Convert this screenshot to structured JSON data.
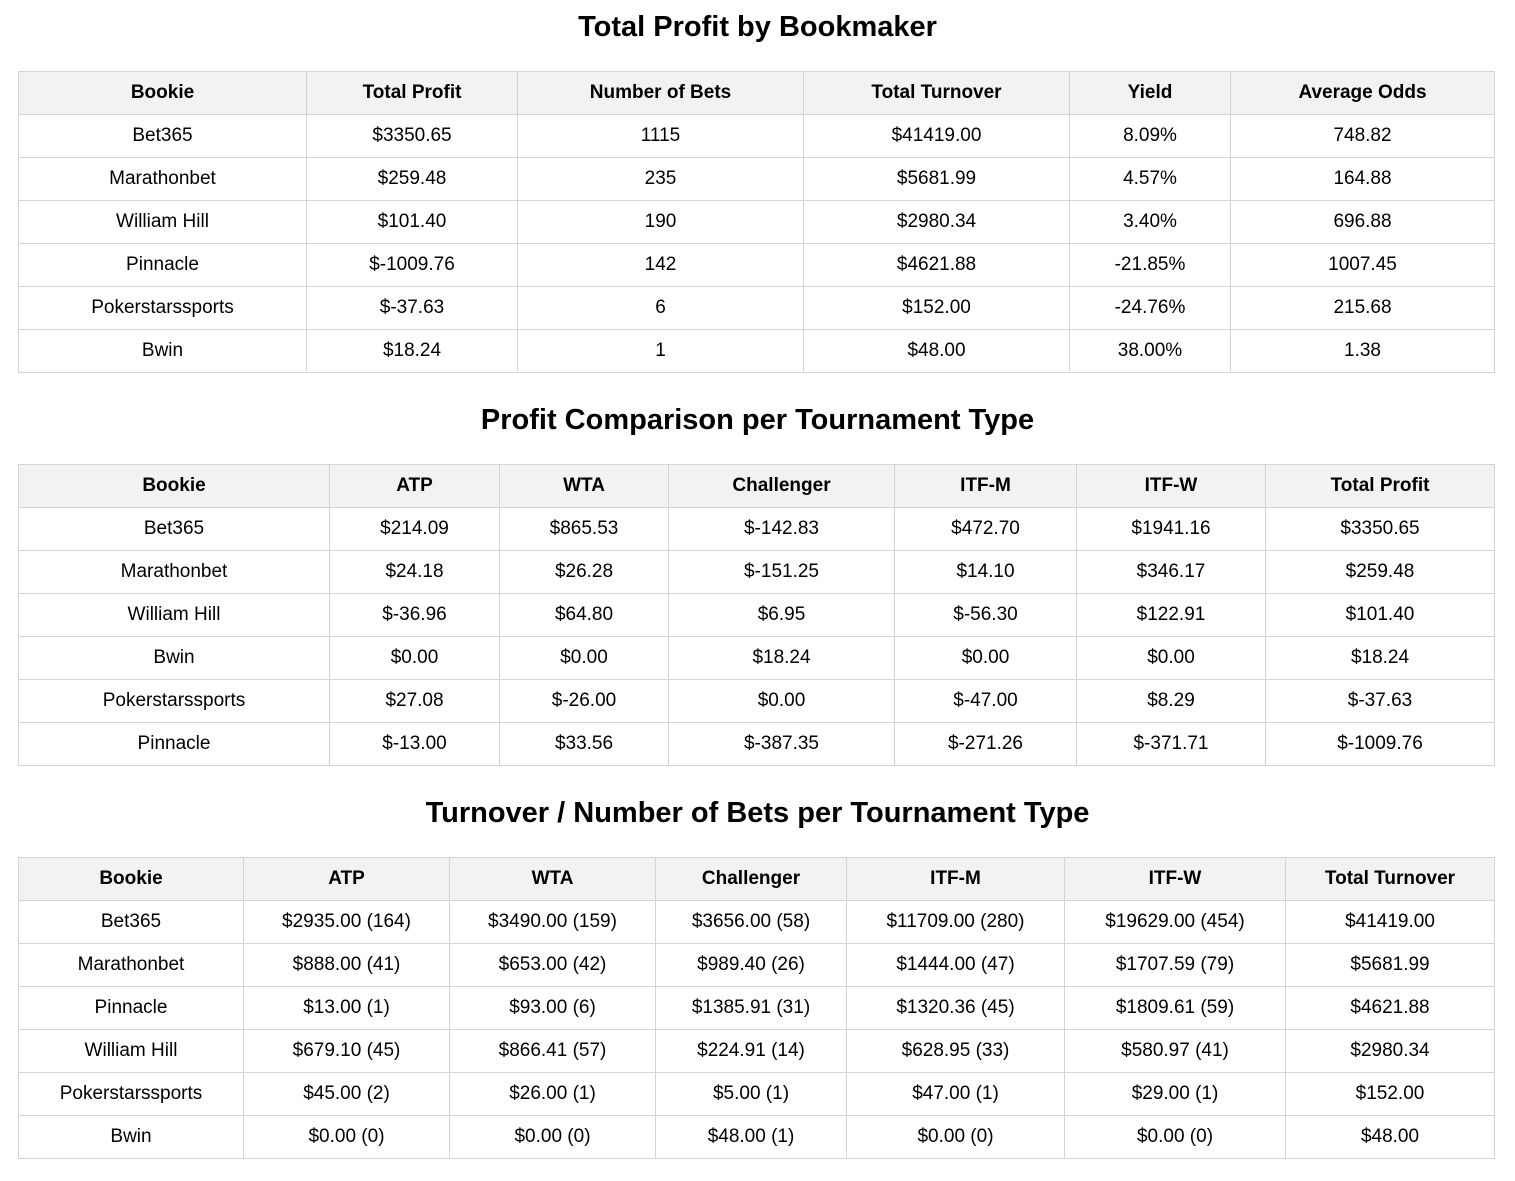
{
  "profit_by_bookmaker": {
    "title": "Total Profit by Bookmaker",
    "columns": [
      "Bookie",
      "Total Profit",
      "Number of Bets",
      "Total Turnover",
      "Yield",
      "Average Odds"
    ],
    "rows": [
      [
        "Bet365",
        "$3350.65",
        "1115",
        "$41419.00",
        "8.09%",
        "748.82"
      ],
      [
        "Marathonbet",
        "$259.48",
        "235",
        "$5681.99",
        "4.57%",
        "164.88"
      ],
      [
        "William Hill",
        "$101.40",
        "190",
        "$2980.34",
        "3.40%",
        "696.88"
      ],
      [
        "Pinnacle",
        "$-1009.76",
        "142",
        "$4621.88",
        "-21.85%",
        "1007.45"
      ],
      [
        "Pokerstarssports",
        "$-37.63",
        "6",
        "$152.00",
        "-24.76%",
        "215.68"
      ],
      [
        "Bwin",
        "$18.24",
        "1",
        "$48.00",
        "38.00%",
        "1.38"
      ]
    ]
  },
  "profit_per_tournament": {
    "title": "Profit Comparison per Tournament Type",
    "columns": [
      "Bookie",
      "ATP",
      "WTA",
      "Challenger",
      "ITF-M",
      "ITF-W",
      "Total Profit"
    ],
    "rows": [
      [
        "Bet365",
        "$214.09",
        "$865.53",
        "$-142.83",
        "$472.70",
        "$1941.16",
        "$3350.65"
      ],
      [
        "Marathonbet",
        "$24.18",
        "$26.28",
        "$-151.25",
        "$14.10",
        "$346.17",
        "$259.48"
      ],
      [
        "William Hill",
        "$-36.96",
        "$64.80",
        "$6.95",
        "$-56.30",
        "$122.91",
        "$101.40"
      ],
      [
        "Bwin",
        "$0.00",
        "$0.00",
        "$18.24",
        "$0.00",
        "$0.00",
        "$18.24"
      ],
      [
        "Pokerstarssports",
        "$27.08",
        "$-26.00",
        "$0.00",
        "$-47.00",
        "$8.29",
        "$-37.63"
      ],
      [
        "Pinnacle",
        "$-13.00",
        "$33.56",
        "$-387.35",
        "$-271.26",
        "$-371.71",
        "$-1009.76"
      ]
    ]
  },
  "turnover_per_tournament": {
    "title": "Turnover / Number of Bets per Tournament Type",
    "columns": [
      "Bookie",
      "ATP",
      "WTA",
      "Challenger",
      "ITF-M",
      "ITF-W",
      "Total Turnover"
    ],
    "rows": [
      [
        "Bet365",
        "$2935.00 (164)",
        "$3490.00 (159)",
        "$3656.00 (58)",
        "$11709.00 (280)",
        "$19629.00 (454)",
        "$41419.00"
      ],
      [
        "Marathonbet",
        "$888.00 (41)",
        "$653.00 (42)",
        "$989.40 (26)",
        "$1444.00 (47)",
        "$1707.59 (79)",
        "$5681.99"
      ],
      [
        "Pinnacle",
        "$13.00 (1)",
        "$93.00 (6)",
        "$1385.91 (31)",
        "$1320.36 (45)",
        "$1809.61 (59)",
        "$4621.88"
      ],
      [
        "William Hill",
        "$679.10 (45)",
        "$866.41 (57)",
        "$224.91 (14)",
        "$628.95 (33)",
        "$580.97 (41)",
        "$2980.34"
      ],
      [
        "Pokerstarssports",
        "$45.00 (2)",
        "$26.00 (1)",
        "$5.00 (1)",
        "$47.00 (1)",
        "$29.00 (1)",
        "$152.00"
      ],
      [
        "Bwin",
        "$0.00 (0)",
        "$0.00 (0)",
        "$48.00 (1)",
        "$0.00 (0)",
        "$0.00 (0)",
        "$48.00"
      ]
    ]
  }
}
